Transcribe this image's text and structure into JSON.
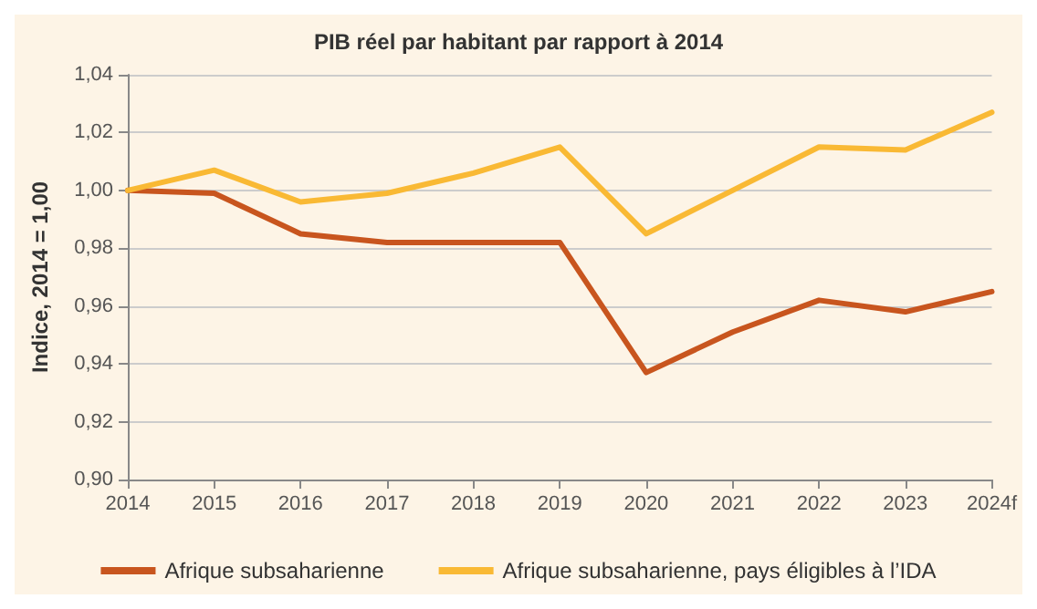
{
  "chart_data": {
    "type": "line",
    "title": "PIB réel par habitant par rapport à 2014",
    "ylabel": "Indice, 2014 = 1,00",
    "categories": [
      "2014",
      "2015",
      "2016",
      "2017",
      "2018",
      "2019",
      "2020",
      "2021",
      "2022",
      "2023",
      "2024f"
    ],
    "series": [
      {
        "name": "Afrique subsaharienne",
        "color": "#c8551e",
        "values": [
          1.0,
          0.999,
          0.985,
          0.982,
          0.982,
          0.982,
          0.937,
          0.951,
          0.962,
          0.958,
          0.965
        ]
      },
      {
        "name": "Afrique subsaharienne, pays éligibles à l’IDA",
        "color": "#f9b934",
        "values": [
          1.0,
          1.007,
          0.996,
          0.999,
          1.006,
          1.015,
          0.985,
          1.0,
          1.015,
          1.014,
          1.027
        ]
      }
    ],
    "ylim": [
      0.9,
      1.04
    ],
    "yticks": [
      {
        "value": 0.9,
        "label": "0,90"
      },
      {
        "value": 0.92,
        "label": "0,92"
      },
      {
        "value": 0.94,
        "label": "0,94"
      },
      {
        "value": 0.96,
        "label": "0,96"
      },
      {
        "value": 0.98,
        "label": "0,98"
      },
      {
        "value": 1.0,
        "label": "1,00"
      },
      {
        "value": 1.02,
        "label": "1,02"
      },
      {
        "value": 1.04,
        "label": "1,04"
      }
    ],
    "grid": "y",
    "legend": "bottom",
    "marker": "none",
    "line_style": "solid"
  }
}
